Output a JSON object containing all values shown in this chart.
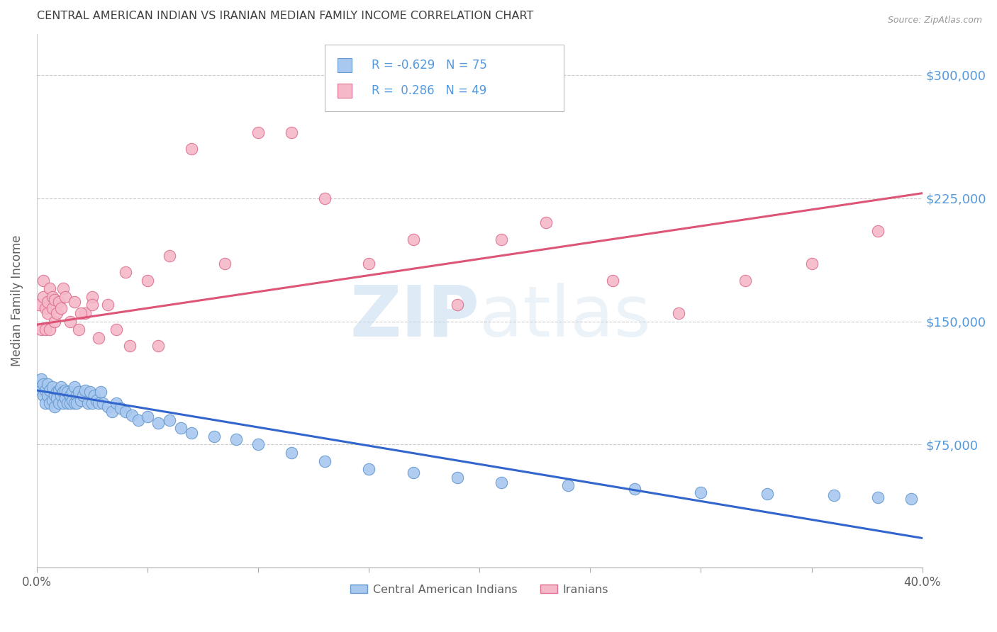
{
  "title": "CENTRAL AMERICAN INDIAN VS IRANIAN MEDIAN FAMILY INCOME CORRELATION CHART",
  "source": "Source: ZipAtlas.com",
  "ylabel": "Median Family Income",
  "yticks": [
    0,
    75000,
    150000,
    225000,
    300000
  ],
  "ytick_labels": [
    "",
    "$75,000",
    "$150,000",
    "$225,000",
    "$300,000"
  ],
  "ylim": [
    0,
    325000
  ],
  "xlim": [
    0.0,
    0.4
  ],
  "legend_blue_r": "-0.629",
  "legend_blue_n": "75",
  "legend_pink_r": "0.286",
  "legend_pink_n": "49",
  "blue_color": "#a8c8f0",
  "blue_edge": "#6699cc",
  "pink_color": "#f5b8c8",
  "pink_edge": "#dd7090",
  "blue_line_color": "#3366cc",
  "pink_line_color": "#dd5577",
  "background_color": "#ffffff",
  "grid_color": "#cccccc",
  "title_color": "#404040",
  "axis_label_color": "#606060",
  "right_tick_color": "#5599dd",
  "watermark_zip_color": "#c8ddf0",
  "watermark_atlas_color": "#c8ddf0",
  "blue_x": [
    0.001,
    0.002,
    0.002,
    0.003,
    0.003,
    0.004,
    0.004,
    0.005,
    0.005,
    0.006,
    0.006,
    0.007,
    0.007,
    0.008,
    0.008,
    0.009,
    0.009,
    0.01,
    0.01,
    0.011,
    0.011,
    0.012,
    0.012,
    0.013,
    0.013,
    0.014,
    0.014,
    0.015,
    0.015,
    0.016,
    0.016,
    0.017,
    0.017,
    0.018,
    0.018,
    0.019,
    0.02,
    0.021,
    0.022,
    0.023,
    0.024,
    0.025,
    0.026,
    0.027,
    0.028,
    0.029,
    0.03,
    0.032,
    0.034,
    0.036,
    0.038,
    0.04,
    0.043,
    0.046,
    0.05,
    0.055,
    0.06,
    0.065,
    0.07,
    0.08,
    0.09,
    0.1,
    0.115,
    0.13,
    0.15,
    0.17,
    0.19,
    0.21,
    0.24,
    0.27,
    0.3,
    0.33,
    0.36,
    0.38,
    0.395
  ],
  "blue_y": [
    110000,
    108000,
    115000,
    105000,
    112000,
    100000,
    108000,
    105000,
    112000,
    100000,
    108000,
    102000,
    110000,
    105000,
    98000,
    107000,
    103000,
    108000,
    100000,
    105000,
    110000,
    100000,
    107000,
    103000,
    108000,
    100000,
    107000,
    105000,
    100000,
    107000,
    102000,
    100000,
    110000,
    105000,
    100000,
    107000,
    102000,
    105000,
    108000,
    100000,
    107000,
    100000,
    105000,
    102000,
    100000,
    107000,
    100000,
    98000,
    95000,
    100000,
    97000,
    95000,
    93000,
    90000,
    92000,
    88000,
    90000,
    85000,
    82000,
    80000,
    78000,
    75000,
    70000,
    65000,
    60000,
    58000,
    55000,
    52000,
    50000,
    48000,
    46000,
    45000,
    44000,
    43000,
    42000
  ],
  "pink_x": [
    0.001,
    0.002,
    0.003,
    0.003,
    0.004,
    0.004,
    0.005,
    0.005,
    0.006,
    0.006,
    0.007,
    0.007,
    0.008,
    0.008,
    0.009,
    0.01,
    0.011,
    0.012,
    0.013,
    0.015,
    0.017,
    0.019,
    0.022,
    0.025,
    0.028,
    0.032,
    0.036,
    0.042,
    0.05,
    0.06,
    0.07,
    0.085,
    0.1,
    0.115,
    0.13,
    0.15,
    0.17,
    0.19,
    0.21,
    0.23,
    0.26,
    0.29,
    0.32,
    0.35,
    0.38,
    0.02,
    0.025,
    0.04,
    0.055
  ],
  "pink_y": [
    160000,
    145000,
    165000,
    175000,
    158000,
    145000,
    162000,
    155000,
    145000,
    170000,
    158000,
    165000,
    150000,
    163000,
    155000,
    162000,
    158000,
    170000,
    165000,
    150000,
    162000,
    145000,
    155000,
    165000,
    140000,
    160000,
    145000,
    135000,
    175000,
    190000,
    255000,
    185000,
    265000,
    265000,
    225000,
    185000,
    200000,
    160000,
    200000,
    210000,
    175000,
    155000,
    175000,
    185000,
    205000,
    155000,
    160000,
    180000,
    135000
  ],
  "blue_trendline_x": [
    0.0,
    0.4
  ],
  "blue_trendline_y": [
    108000,
    18000
  ],
  "pink_trendline_x": [
    0.0,
    0.4
  ],
  "pink_trendline_y": [
    148000,
    228000
  ],
  "xtick_positions": [
    0.0,
    0.05,
    0.1,
    0.15,
    0.2,
    0.25,
    0.3,
    0.35,
    0.4
  ],
  "xtick_show_labels": [
    true,
    false,
    false,
    false,
    false,
    false,
    false,
    false,
    true
  ]
}
